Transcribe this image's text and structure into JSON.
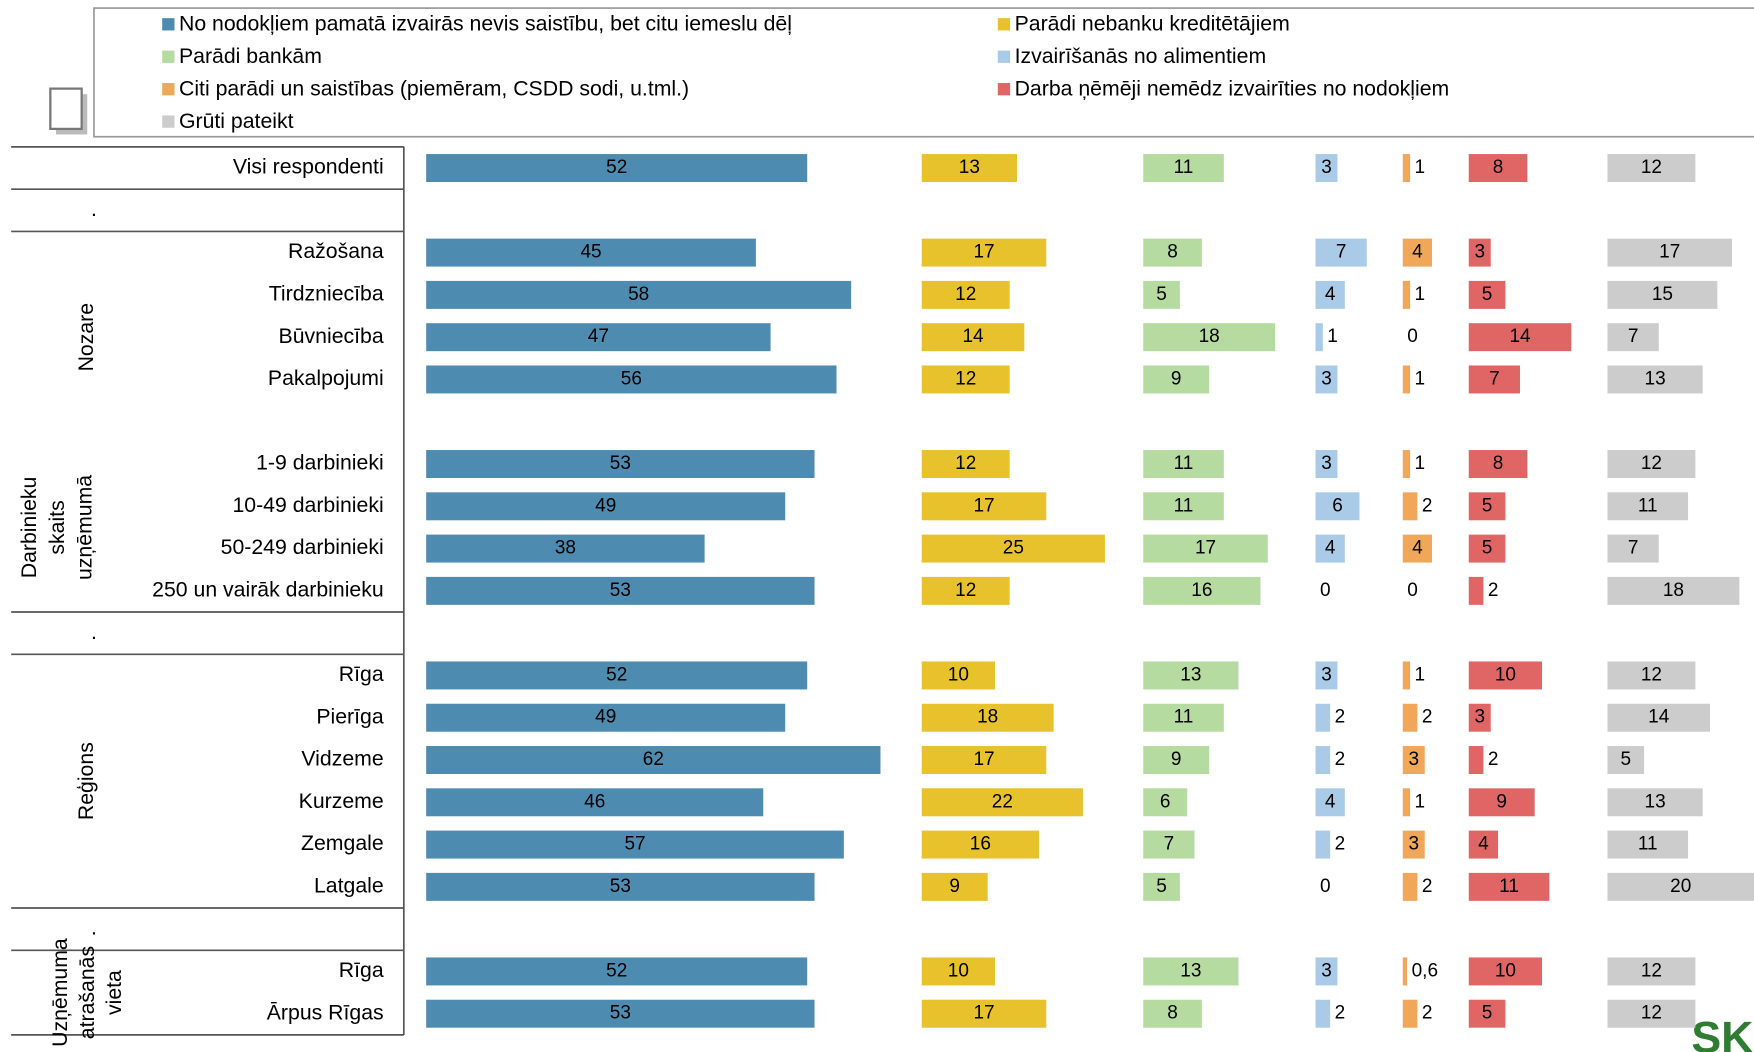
{
  "chart_data": {
    "type": "bar",
    "orientation": "horizontal",
    "categories": [
      "Visi respondenti",
      null,
      "Ražošana",
      "Tirdzniecība",
      "Būvniecība",
      "Pakalpojumi",
      null,
      "1-9 darbinieki",
      "10-49 darbinieki",
      "50-249 darbinieki",
      "250 un vairāk darbinieku",
      null,
      "Rīga",
      "Pierīga",
      "Vidzeme",
      "Kurzeme",
      "Zemgale",
      "Latgale",
      null,
      "Rīga",
      "Ārpus Rīgas"
    ],
    "groups": [
      {
        "label_lines": [
          "."
        ],
        "start": 1,
        "end": 1
      },
      {
        "label_lines": [
          "Nozare"
        ],
        "start": 2,
        "end": 6
      },
      {
        "label_lines": [
          "Darbinieku",
          "skaits",
          "uzņēmumā"
        ],
        "start": 7,
        "end": 10
      },
      {
        "label_lines": [
          "."
        ],
        "start": 11,
        "end": 11
      },
      {
        "label_lines": [
          "Reģions"
        ],
        "start": 12,
        "end": 17
      },
      {
        "label_lines": [
          "."
        ],
        "start": 18,
        "end": 18
      },
      {
        "label_lines": [
          "Uzņēmuma",
          "atrašanās",
          "vieta"
        ],
        "start": 19,
        "end": 20
      }
    ],
    "series": [
      {
        "name": "No nodokļiem pamatā izvairās nevis saistību, bet citu iemeslu dēļ",
        "color": "#4e8bb0",
        "values": [
          52,
          null,
          45,
          58,
          47,
          56,
          null,
          53,
          49,
          38,
          53,
          null,
          52,
          49,
          62,
          46,
          57,
          53,
          null,
          52,
          53
        ]
      },
      {
        "name": "Parādi nebanku kreditētājiem",
        "color": "#e8c22c",
        "values": [
          13,
          null,
          17,
          12,
          14,
          12,
          null,
          12,
          17,
          25,
          12,
          null,
          10,
          18,
          17,
          22,
          16,
          9,
          null,
          10,
          17
        ]
      },
      {
        "name": "Parādi bankām",
        "color": "#b5dba0",
        "values": [
          11,
          null,
          8,
          5,
          18,
          9,
          null,
          11,
          11,
          17,
          16,
          null,
          13,
          11,
          9,
          6,
          7,
          5,
          null,
          13,
          8
        ]
      },
      {
        "name": "Izvairīšanās no alimentiem",
        "color": "#a9cbe8",
        "values": [
          3,
          null,
          7,
          4,
          1,
          3,
          null,
          3,
          6,
          4,
          0,
          null,
          3,
          2,
          2,
          4,
          2,
          0,
          null,
          3,
          2
        ]
      },
      {
        "name": "Citi parādi un saistības (piemēram, CSDD sodi, u.tml.)",
        "color": "#f0a75a",
        "values": [
          1,
          null,
          4,
          1,
          0,
          1,
          null,
          1,
          2,
          4,
          0,
          null,
          1,
          2,
          3,
          1,
          3,
          2,
          null,
          0.6,
          2
        ],
        "value_labels": [
          "1",
          null,
          "4",
          "1",
          "0",
          "1",
          null,
          "1",
          "2",
          "4",
          "0",
          null,
          "1",
          "2",
          "3",
          "1",
          "3",
          "2",
          null,
          "0,6",
          "2"
        ]
      },
      {
        "name": "Darba ņēmēji nemēdz izvairīties no nodokļiem",
        "color": "#e06666",
        "values": [
          8,
          null,
          3,
          5,
          14,
          7,
          null,
          8,
          5,
          5,
          2,
          null,
          10,
          3,
          2,
          9,
          4,
          11,
          null,
          10,
          5
        ]
      },
      {
        "name": "Grūti pateikt",
        "color": "#cccccc",
        "values": [
          12,
          null,
          17,
          15,
          7,
          13,
          null,
          12,
          11,
          7,
          18,
          null,
          12,
          14,
          5,
          13,
          11,
          20,
          null,
          12,
          12
        ]
      }
    ],
    "logo": "SK"
  }
}
